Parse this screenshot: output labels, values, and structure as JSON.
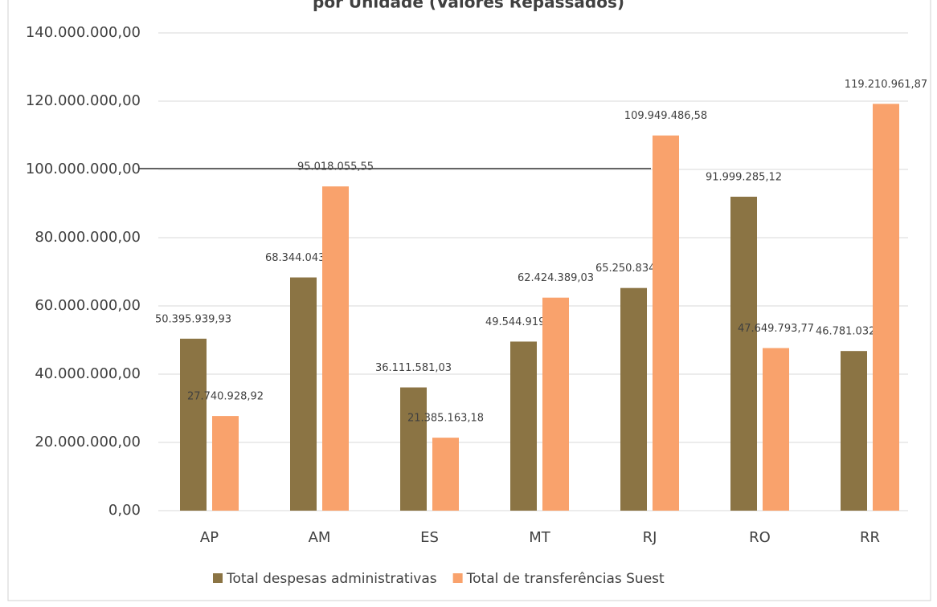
{
  "chart_data": {
    "type": "bar",
    "title": "por Unidade (Valores Repassados)",
    "categories": [
      "AP",
      "AM",
      "ES",
      "MT",
      "RJ",
      "RO",
      "RR"
    ],
    "series": [
      {
        "name": "Total despesas administrativas",
        "color": "#8b7444",
        "values": [
          50395939.93,
          68344043.56,
          36111581.03,
          49544919.88,
          65250834.6,
          91999285.12,
          46781032.69
        ],
        "value_labels": [
          "50.395.939,93",
          "68.344.043,56",
          "36.111.581,03",
          "49.544.919,88",
          "65.250.834,60",
          "91.999.285,12",
          "46.781.032,69"
        ]
      },
      {
        "name": "Total de transferências Suest",
        "color": "#f9a26c",
        "values": [
          27740928.92,
          95018055.55,
          21385163.18,
          62424389.03,
          109949486.58,
          47649793.77,
          119210961.87
        ],
        "value_labels": [
          "27.740.928,92",
          "95.018.055,55",
          "21.385.163,18",
          "62.424.389,03",
          "109.949.486,58",
          "47.649.793,77",
          "119.210.961,87"
        ]
      }
    ],
    "ylim": [
      0,
      140000000
    ],
    "yticks": [
      {
        "value": 0,
        "label": "0,00"
      },
      {
        "value": 20000000,
        "label": "20.000.000,00"
      },
      {
        "value": 40000000,
        "label": "40.000.000,00"
      },
      {
        "value": 60000000,
        "label": "60.000.000,00"
      },
      {
        "value": 80000000,
        "label": "80.000.000,00"
      },
      {
        "value": 100000000,
        "label": "100.000.000,00"
      },
      {
        "value": 120000000,
        "label": "120.000.000,00"
      },
      {
        "value": 140000000,
        "label": "140.000.000,00"
      }
    ],
    "grid": true,
    "legend": "bottom"
  }
}
